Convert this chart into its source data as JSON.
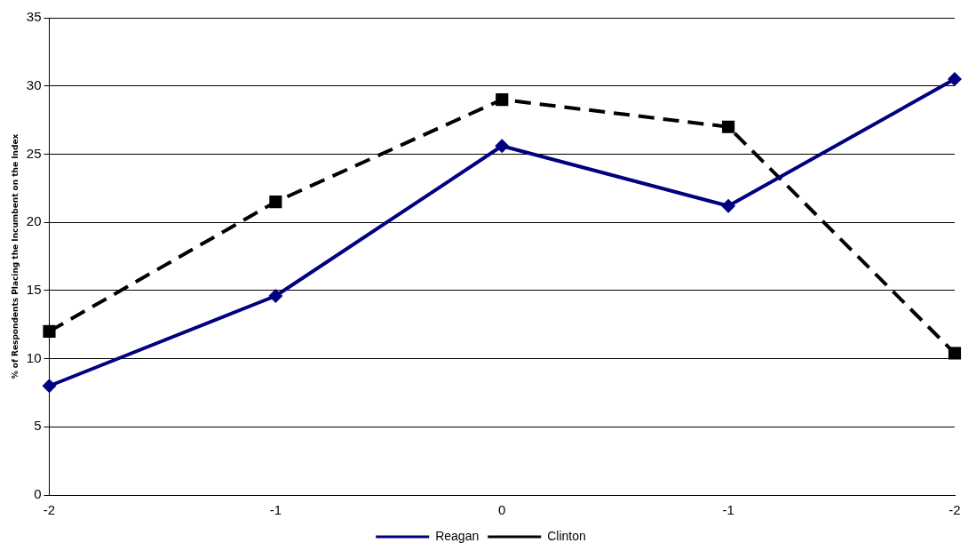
{
  "chart_data": {
    "type": "line",
    "ylabel": "% of Respondents Placing the Incumbent on the Index",
    "categories": [
      "-2",
      "-1",
      "0",
      "-1",
      "-2"
    ],
    "series": [
      {
        "name": "Reagan",
        "color": "#000080",
        "values": [
          8,
          14.6,
          25.6,
          21.2,
          30.5
        ],
        "marker": "diamond",
        "line_style": "solid"
      },
      {
        "name": "Clinton",
        "color": "#000000",
        "values": [
          12,
          21.5,
          29,
          27,
          10.4
        ],
        "marker": "square",
        "line_style": "dashed"
      }
    ],
    "ylim": [
      0,
      35
    ],
    "yticks": [
      0,
      5,
      10,
      15,
      20,
      25,
      30,
      35
    ],
    "grid": "y",
    "legend": "bottom"
  }
}
